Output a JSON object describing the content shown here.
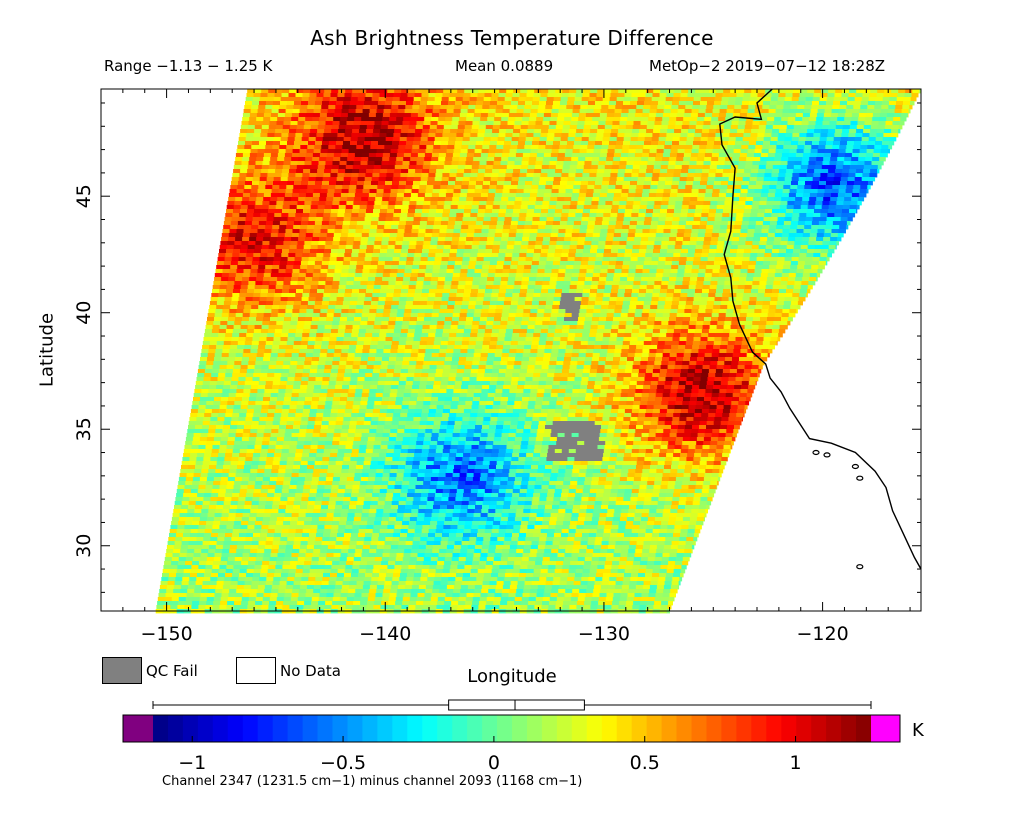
{
  "header": {
    "title": "Ash Brightness Temperature Difference",
    "range_text": "Range −1.13 − 1.25 K",
    "mean_text": "Mean 0.0889",
    "satellite_text": "MetOp−2 2019−07−12 18:28Z"
  },
  "legend": {
    "qc_fail": "QC Fail",
    "no_data": "No Data",
    "qc_fail_color": "#808080",
    "no_data_color": "#ffffff"
  },
  "colorbar": {
    "unit": "K",
    "note": "Channel 2347 (1231.5 cm−1) minus channel 2093 (1168 cm−1)",
    "range": [
      -1.13,
      1.25
    ],
    "ticks": [
      {
        "value": -1,
        "label": "−1"
      },
      {
        "value": -0.5,
        "label": "−0.5"
      },
      {
        "value": 0,
        "label": "0"
      },
      {
        "value": 0.5,
        "label": "0.5"
      },
      {
        "value": 1,
        "label": "1"
      }
    ],
    "under_color": "#800080",
    "over_color": "#ff00ff",
    "colormap": "jet",
    "boxplot": {
      "min": -1.13,
      "q1": -0.15,
      "median": 0.07,
      "q3": 0.3,
      "max": 1.25
    }
  },
  "chart_data": {
    "type": "heatmap",
    "title": "Ash Brightness Temperature Difference",
    "xlabel": "Longitude",
    "ylabel": "Latitude",
    "xlim": [
      -153,
      -115.5
    ],
    "ylim": [
      27.2,
      49.6
    ],
    "xticks": [
      {
        "value": -150,
        "label": "−150"
      },
      {
        "value": -140,
        "label": "−140"
      },
      {
        "value": -130,
        "label": "−130"
      },
      {
        "value": -120,
        "label": "−120"
      }
    ],
    "yticks": [
      {
        "value": 30,
        "label": "30"
      },
      {
        "value": 35,
        "label": "35"
      },
      {
        "value": 40,
        "label": "40"
      },
      {
        "value": 45,
        "label": "45"
      }
    ],
    "grid": false,
    "units": "K",
    "value_range": [
      -1.13,
      1.25
    ],
    "mean": 0.0889,
    "swath_corners_lonlat": [
      [
        -146.3,
        49.6
      ],
      [
        -115.5,
        49.6
      ],
      [
        -127.0,
        27.2
      ],
      [
        -150.5,
        27.2
      ]
    ],
    "swath_right_mid": [
      -122.7,
      37.8
    ],
    "qc_fail_regions": [
      {
        "center": [
          -131.3,
          34.5
        ],
        "size_deg": [
          2.5,
          1.8
        ]
      },
      {
        "center": [
          -131.5,
          40.3
        ],
        "size_deg": [
          0.8,
          1.2
        ]
      }
    ],
    "features": [
      {
        "desc": "warm (positive) west edge",
        "center": [
          -146,
          43
        ],
        "value": 0.75
      },
      {
        "desc": "warm north-west strip",
        "center": [
          -141,
          47.5
        ],
        "value": 0.9
      },
      {
        "desc": "warm east edge off California",
        "center": [
          -125.5,
          36.5
        ],
        "value": 1.0
      },
      {
        "desc": "cold (negative) pocket",
        "center": [
          -136.5,
          33.0
        ],
        "value": -0.7
      },
      {
        "desc": "cold band off Washington",
        "center": [
          -119.5,
          45.5
        ],
        "value": -0.9
      }
    ],
    "coastline_lonlat": [
      [
        -122.3,
        49.6
      ],
      [
        -123.0,
        49.0
      ],
      [
        -122.8,
        48.3
      ],
      [
        -124.0,
        48.4
      ],
      [
        -124.7,
        48.1
      ],
      [
        -124.6,
        47.2
      ],
      [
        -124.0,
        46.2
      ],
      [
        -124.1,
        45.0
      ],
      [
        -124.2,
        43.5
      ],
      [
        -124.5,
        42.5
      ],
      [
        -124.2,
        41.5
      ],
      [
        -124.1,
        40.5
      ],
      [
        -123.8,
        39.5
      ],
      [
        -123.2,
        38.3
      ],
      [
        -122.6,
        37.8
      ],
      [
        -122.4,
        37.2
      ],
      [
        -121.9,
        36.6
      ],
      [
        -121.5,
        35.9
      ],
      [
        -120.6,
        34.6
      ],
      [
        -119.6,
        34.4
      ],
      [
        -118.5,
        34.0
      ],
      [
        -117.6,
        33.2
      ],
      [
        -117.1,
        32.5
      ],
      [
        -116.8,
        31.5
      ],
      [
        -116.3,
        30.5
      ],
      [
        -115.8,
        29.5
      ],
      [
        -115.5,
        29.0
      ]
    ],
    "islands_lonlat": [
      [
        -120.3,
        34.0
      ],
      [
        -119.8,
        33.9
      ],
      [
        -118.5,
        33.4
      ],
      [
        -118.3,
        32.9
      ],
      [
        -118.3,
        29.1
      ]
    ]
  }
}
